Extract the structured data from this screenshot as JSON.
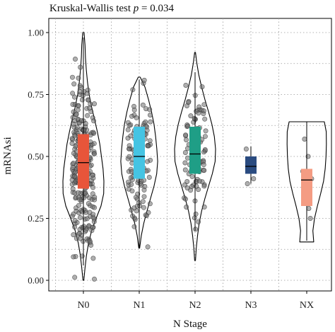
{
  "chart_data": {
    "type": "violin",
    "title": "Kruskal-Wallis test",
    "title_stat_symbol": "p",
    "title_stat_value": "= 0.034",
    "xlabel": "N Stage",
    "ylabel": "mRNAsi",
    "ylim": [
      0,
      1
    ],
    "yticks": [
      "0.00",
      "0.25",
      "0.50",
      "0.75",
      "1.00"
    ],
    "grid": "dotted",
    "categories": [
      "N0",
      "N1",
      "N2",
      "N3",
      "NX"
    ],
    "groups": [
      {
        "category": "N0",
        "color": "#e8553a",
        "box": {
          "q1": 0.37,
          "median": 0.475,
          "q3": 0.59,
          "whisker_low": 0.06,
          "whisker_high": 0.98
        },
        "violin": {
          "min": 0.0,
          "max": 1.0,
          "levels": [
            0.0,
            0.05,
            0.1,
            0.15,
            0.2,
            0.25,
            0.3,
            0.35,
            0.4,
            0.45,
            0.5,
            0.55,
            0.6,
            0.65,
            0.7,
            0.75,
            0.8,
            0.85,
            0.9,
            0.95,
            1.0
          ],
          "widths": [
            0.02,
            0.08,
            0.15,
            0.25,
            0.4,
            0.62,
            0.86,
            0.99,
            1.0,
            0.96,
            0.88,
            0.8,
            0.68,
            0.54,
            0.4,
            0.28,
            0.2,
            0.14,
            0.1,
            0.08,
            0.03
          ]
        },
        "points": 260,
        "spread": 0.17
      },
      {
        "category": "N1",
        "color": "#45c4e3",
        "box": {
          "q1": 0.41,
          "median": 0.5,
          "q3": 0.62,
          "whisker_low": 0.13,
          "whisker_high": 0.81
        },
        "violin": {
          "min": 0.13,
          "max": 0.82,
          "levels": [
            0.13,
            0.18,
            0.23,
            0.28,
            0.33,
            0.38,
            0.43,
            0.48,
            0.53,
            0.58,
            0.63,
            0.68,
            0.73,
            0.78,
            0.82
          ],
          "widths": [
            0.02,
            0.1,
            0.22,
            0.38,
            0.55,
            0.72,
            0.85,
            0.9,
            0.86,
            0.8,
            0.72,
            0.6,
            0.45,
            0.28,
            0.05
          ]
        },
        "points": 110,
        "spread": 0.13
      },
      {
        "category": "N2",
        "color": "#1f9e86",
        "box": {
          "q1": 0.43,
          "median": 0.51,
          "q3": 0.62,
          "whisker_low": 0.2,
          "whisker_high": 0.84
        },
        "violin": {
          "min": 0.08,
          "max": 0.92,
          "levels": [
            0.08,
            0.13,
            0.18,
            0.23,
            0.28,
            0.33,
            0.38,
            0.43,
            0.48,
            0.53,
            0.58,
            0.63,
            0.68,
            0.73,
            0.78,
            0.83,
            0.88,
            0.92
          ],
          "widths": [
            0.02,
            0.06,
            0.12,
            0.2,
            0.32,
            0.48,
            0.66,
            0.84,
            0.98,
            1.0,
            0.94,
            0.82,
            0.66,
            0.48,
            0.32,
            0.18,
            0.08,
            0.02
          ]
        },
        "points": 95,
        "spread": 0.13
      },
      {
        "category": "N3",
        "color": "#2a4b80",
        "box": {
          "q1": 0.43,
          "median": 0.46,
          "q3": 0.5,
          "whisker_low": 0.39,
          "whisker_high": 0.54
        },
        "violin": null,
        "points_list": [
          0.53,
          0.45,
          0.41,
          0.39
        ],
        "spread": 0.0
      },
      {
        "category": "NX",
        "color": "#f49c83",
        "box": {
          "q1": 0.3,
          "median": 0.405,
          "q3": 0.45,
          "whisker_low": 0.16,
          "whisker_high": 0.64
        },
        "violin": {
          "min": 0.155,
          "max": 0.64,
          "levels": [
            0.155,
            0.2,
            0.25,
            0.3,
            0.35,
            0.4,
            0.45,
            0.5,
            0.55,
            0.6,
            0.64
          ],
          "widths": [
            0.34,
            0.3,
            0.38,
            0.52,
            0.68,
            0.82,
            0.9,
            0.94,
            0.96,
            0.95,
            0.86
          ]
        },
        "points_list": [
          0.57,
          0.5,
          0.41,
          0.33,
          0.29,
          0.25,
          0.44
        ],
        "spread": 0.0
      }
    ]
  }
}
